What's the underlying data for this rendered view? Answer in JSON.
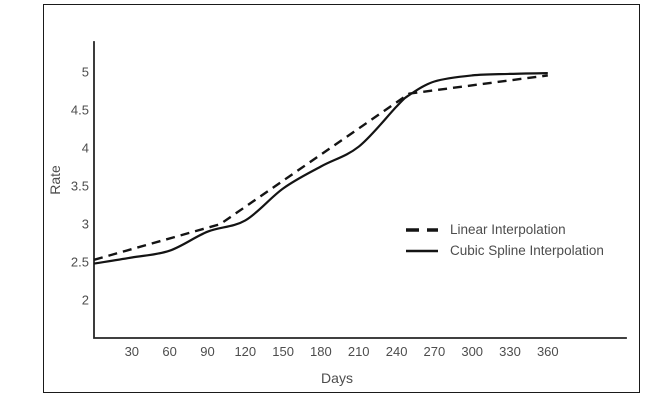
{
  "window": {
    "background": "#ffffff",
    "frame_color": "#1a1a1a"
  },
  "chart_data": {
    "type": "line",
    "title": "",
    "xlabel": "Days",
    "ylabel": "Rate",
    "xlim": [
      0,
      422
    ],
    "ylim": [
      1.5,
      5.4
    ],
    "grid": false,
    "line_color": "#141414",
    "axis_color": "#262626",
    "text_color": "#4d4d4d",
    "x_ticks": [
      30,
      60,
      90,
      120,
      150,
      180,
      210,
      240,
      270,
      300,
      330,
      360
    ],
    "y_ticks": [
      2,
      2.5,
      3,
      3.5,
      4,
      4.5,
      5
    ],
    "legend": {
      "position": "middle-right",
      "items": [
        {
          "label": "Linear Interpolation",
          "style": "dashed"
        },
        {
          "label": "Cubic Spline Interpolation",
          "style": "solid"
        }
      ]
    },
    "series": [
      {
        "name": "Linear Interpolation",
        "style": "dashed",
        "points": [
          [
            0,
            2.53
          ],
          [
            100,
            3.0
          ],
          [
            250,
            4.72
          ],
          [
            360,
            4.96
          ]
        ]
      },
      {
        "name": "Cubic Spline Interpolation",
        "style": "solid",
        "points": [
          [
            0,
            2.48
          ],
          [
            30,
            2.56
          ],
          [
            60,
            2.65
          ],
          [
            90,
            2.9
          ],
          [
            120,
            3.05
          ],
          [
            150,
            3.47
          ],
          [
            180,
            3.76
          ],
          [
            210,
            4.02
          ],
          [
            240,
            4.55
          ],
          [
            250,
            4.7
          ],
          [
            270,
            4.88
          ],
          [
            300,
            4.96
          ],
          [
            330,
            4.98
          ],
          [
            360,
            4.99
          ]
        ]
      }
    ]
  }
}
